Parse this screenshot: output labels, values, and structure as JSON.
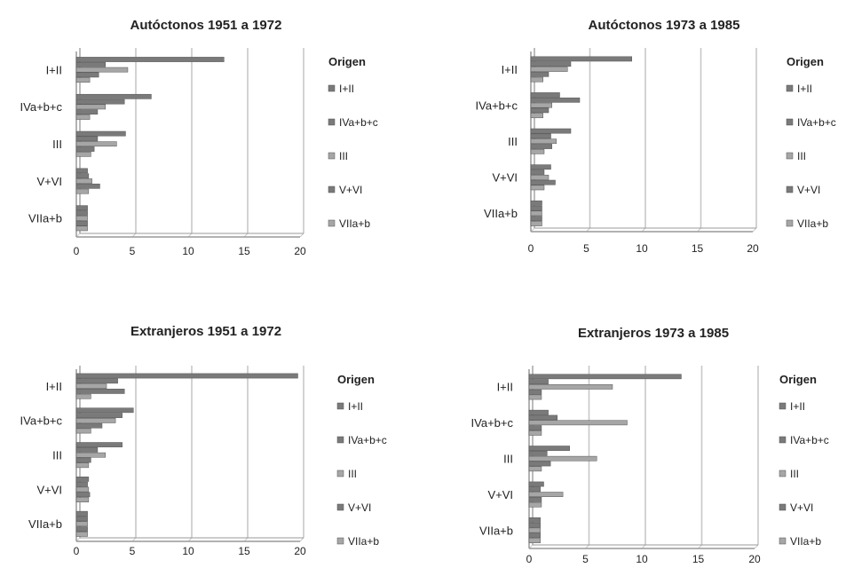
{
  "colors": {
    "bar_fill": "#7a7a7a",
    "bar_fill_light": "#a6a6a6",
    "bar_stroke": "#555555",
    "axis": "#999999",
    "grid": "#c8c8c8",
    "text": "#222222"
  },
  "chart_data": [
    {
      "type": "bar",
      "orientation": "horizontal",
      "title": "Autóctonos 1951 a 1972",
      "categories": [
        "I+II",
        "IVa+b+c",
        "III",
        "V+VI",
        "VIIa+b"
      ],
      "xlim": [
        0,
        20
      ],
      "xticks": [
        "0",
        "5",
        "10",
        "15",
        "20"
      ],
      "grid": true,
      "legend": {
        "title": "Origen",
        "placement": "right",
        "entries": [
          "I+II",
          "IVa+b+c",
          "III",
          "V+VI",
          "VIIa+b"
        ]
      },
      "series": [
        {
          "name": "I+II",
          "values": [
            13.2,
            6.7,
            4.4,
            1.0,
            1.0
          ]
        },
        {
          "name": "IVa+b+c",
          "values": [
            2.6,
            4.3,
            1.9,
            1.1,
            1.0
          ]
        },
        {
          "name": "III",
          "values": [
            4.6,
            2.6,
            3.6,
            1.4,
            1.0
          ]
        },
        {
          "name": "V+VI",
          "values": [
            2.0,
            1.9,
            1.6,
            2.1,
            1.0
          ]
        },
        {
          "name": "VIIa+b",
          "values": [
            1.2,
            1.2,
            1.3,
            1.1,
            1.0
          ]
        }
      ]
    },
    {
      "type": "bar",
      "orientation": "horizontal",
      "title": "Autóctonos 1973 a 1985",
      "categories": [
        "I+II",
        "IVa+b+c",
        "III",
        "V+VI",
        "VIIa+b"
      ],
      "xlim": [
        0,
        20
      ],
      "xticks": [
        "0",
        "5",
        "10",
        "15",
        "20"
      ],
      "grid": true,
      "legend": {
        "title": "Origen",
        "placement": "right",
        "entries": [
          "I+II",
          "IVa+b+c",
          "III",
          "V+VI",
          "VIIa+b"
        ]
      },
      "series": [
        {
          "name": "I+II",
          "values": [
            9.1,
            2.6,
            3.6,
            1.8,
            1.0
          ]
        },
        {
          "name": "IVa+b+c",
          "values": [
            3.6,
            4.4,
            1.8,
            1.2,
            1.0
          ]
        },
        {
          "name": "III",
          "values": [
            3.3,
            1.9,
            2.3,
            1.6,
            1.0
          ]
        },
        {
          "name": "V+VI",
          "values": [
            1.6,
            1.6,
            1.9,
            2.2,
            1.0
          ]
        },
        {
          "name": "VIIa+b",
          "values": [
            1.1,
            1.1,
            1.2,
            1.2,
            1.0
          ]
        }
      ]
    },
    {
      "type": "bar",
      "orientation": "horizontal",
      "title": "Extranjeros 1951 a 1972",
      "categories": [
        "I+II",
        "IVa+b+c",
        "III",
        "V+VI",
        "VIIa+b"
      ],
      "xlim": [
        0,
        20
      ],
      "xticks": [
        "0",
        "5",
        "10",
        "15",
        "20"
      ],
      "grid": true,
      "legend": {
        "title": "Origen",
        "placement": "right",
        "entries": [
          "I+II",
          "IVa+b+c",
          "III",
          "V+VI",
          "VIIa+b"
        ]
      },
      "series": [
        {
          "name": "I+II",
          "values": [
            19.8,
            5.1,
            4.1,
            1.1,
            1.0
          ]
        },
        {
          "name": "IVa+b+c",
          "values": [
            3.7,
            4.1,
            1.9,
            1.0,
            1.0
          ]
        },
        {
          "name": "III",
          "values": [
            2.7,
            3.5,
            2.6,
            1.1,
            1.0
          ]
        },
        {
          "name": "V+VI",
          "values": [
            4.3,
            2.3,
            1.3,
            1.2,
            1.0
          ]
        },
        {
          "name": "VIIa+b",
          "values": [
            1.3,
            1.3,
            1.1,
            1.1,
            1.0
          ]
        }
      ]
    },
    {
      "type": "bar",
      "orientation": "horizontal",
      "title": "Extranjeros 1973 a 1985",
      "categories": [
        "I+II",
        "IVa+b+c",
        "III",
        "V+VI",
        "VIIa+b"
      ],
      "xlim": [
        0,
        20
      ],
      "xticks": [
        "0",
        "5",
        "10",
        "15",
        "20"
      ],
      "grid": true,
      "legend": {
        "title": "Origen",
        "placement": "right",
        "entries": [
          "I+II",
          "IVa+b+c",
          "III",
          "V+VI",
          "VIIa+b"
        ]
      },
      "series": [
        {
          "name": "I+II",
          "values": [
            13.5,
            1.7,
            3.6,
            1.3,
            1.0
          ]
        },
        {
          "name": "IVa+b+c",
          "values": [
            1.7,
            2.5,
            1.6,
            1.0,
            1.0
          ]
        },
        {
          "name": "III",
          "values": [
            7.4,
            8.7,
            6.0,
            3.0,
            1.0
          ]
        },
        {
          "name": "V+VI",
          "values": [
            1.1,
            1.1,
            1.9,
            1.1,
            1.0
          ]
        },
        {
          "name": "VIIa+b",
          "values": [
            1.1,
            1.1,
            1.1,
            1.1,
            1.0
          ]
        }
      ]
    }
  ]
}
